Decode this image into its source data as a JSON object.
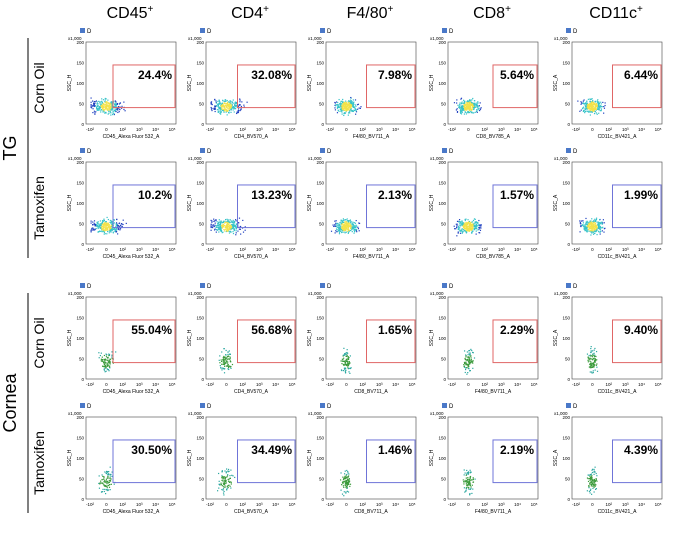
{
  "column_headers": [
    {
      "base": "CD45",
      "sup": "+"
    },
    {
      "base": "CD4",
      "sup": "+"
    },
    {
      "base": "F4/80",
      "sup": "+"
    },
    {
      "base": "CD8",
      "sup": "+"
    },
    {
      "base": "CD11c",
      "sup": "+"
    }
  ],
  "gate_name": "D",
  "y_scale": "x1,000",
  "y_ticks": [
    "0",
    "50",
    "100",
    "150",
    "200"
  ],
  "x_ticks": [
    "-10²",
    "0",
    "10²",
    "10³",
    "10⁴",
    "10⁵"
  ],
  "groups": [
    {
      "label": "TG",
      "rows": [
        {
          "label": "Corn Oil",
          "panels": [
            {
              "percent": "24.4%",
              "x_label": "CD45_Alexa Fluor 532_A",
              "y_label": "SSC_H"
            },
            {
              "percent": "32.08%",
              "x_label": "CD4_BV570_A",
              "y_label": "SSC_H"
            },
            {
              "percent": "7.98%",
              "x_label": "F4/80_BV711_A",
              "y_label": "SSC_H"
            },
            {
              "percent": "5.64%",
              "x_label": "CD8_BV785_A",
              "y_label": "SSC_H"
            },
            {
              "percent": "6.44%",
              "x_label": "CD11c_BV421_A",
              "y_label": "SSC_A"
            }
          ]
        },
        {
          "label": "Tamoxifen",
          "panels": [
            {
              "percent": "10.2%",
              "x_label": "CD45_Alexa Fluor 532_A",
              "y_label": "SSC_H"
            },
            {
              "percent": "13.23%",
              "x_label": "CD4_BV570_A",
              "y_label": "SSC_H"
            },
            {
              "percent": "2.13%",
              "x_label": "F4/80_BV711_A",
              "y_label": "SSC_H"
            },
            {
              "percent": "1.57%",
              "x_label": "CD8_BV785_A",
              "y_label": "SSC_H"
            },
            {
              "percent": "1.99%",
              "x_label": "CD11c_BV421_A",
              "y_label": "SSC_A"
            }
          ]
        }
      ]
    },
    {
      "label": "Cornea",
      "rows": [
        {
          "label": "Corn Oil",
          "panels": [
            {
              "percent": "55.04%",
              "x_label": "CD45_Alexa Fluor 532_A",
              "y_label": "SSC_H"
            },
            {
              "percent": "56.68%",
              "x_label": "CD4_BV570_A",
              "y_label": "SSC_H"
            },
            {
              "percent": "1.65%",
              "x_label": "CD8_BV711_A",
              "y_label": "SSC_H"
            },
            {
              "percent": "2.29%",
              "x_label": "F4/80_BV711_A",
              "y_label": "SSC_H"
            },
            {
              "percent": "9.40%",
              "x_label": "CD11c_BV421_A",
              "y_label": "SSC_A"
            }
          ]
        },
        {
          "label": "Tamoxifen",
          "panels": [
            {
              "percent": "30.50%",
              "x_label": "CD45_Alexa Fluor 532_A",
              "y_label": "SSC_H"
            },
            {
              "percent": "34.49%",
              "x_label": "CD4_BV570_A",
              "y_label": "SSC_H"
            },
            {
              "percent": "1.46%",
              "x_label": "CD8_BV711_A",
              "y_label": "SSC_H"
            },
            {
              "percent": "2.19%",
              "x_label": "F4/80_BV711_A",
              "y_label": "SSC_H"
            },
            {
              "percent": "4.39%",
              "x_label": "CD11c_BV421_A",
              "y_label": "SSC_A"
            }
          ]
        }
      ]
    }
  ]
}
